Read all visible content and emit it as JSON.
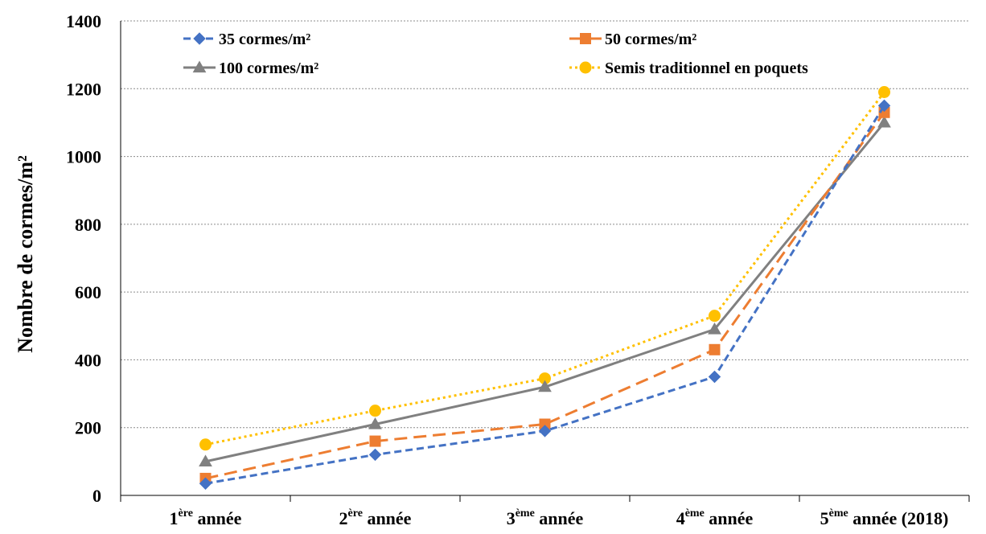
{
  "chart_data": {
    "type": "line",
    "ylabel": "Nombre de cormes/m²",
    "xlabel": "",
    "ylim": [
      0,
      1400
    ],
    "yticks": [
      0,
      200,
      400,
      600,
      800,
      1000,
      1200,
      1400
    ],
    "grid": true,
    "legend_position": "top",
    "categories": [
      {
        "pre": "1",
        "sup": "ère",
        "post": " année"
      },
      {
        "pre": "2",
        "sup": "ère",
        "post": " année"
      },
      {
        "pre": "3",
        "sup": "ème",
        "post": " année"
      },
      {
        "pre": "4",
        "sup": "ème",
        "post": " année"
      },
      {
        "pre": "5",
        "sup": "ème",
        "post": " année (2018)"
      }
    ],
    "series": [
      {
        "name": "35 cormes/m²",
        "values": [
          35,
          120,
          190,
          350,
          1150
        ],
        "color": "#4472C4",
        "dash": "dashed-short",
        "marker": "diamond"
      },
      {
        "name": "50 cormes/m²",
        "values": [
          50,
          160,
          210,
          430,
          1130
        ],
        "color": "#ED7D31",
        "dash": "dashed-long",
        "marker": "square"
      },
      {
        "name": "100 cormes/m²",
        "values": [
          100,
          210,
          320,
          490,
          1100
        ],
        "color": "#808080",
        "dash": "solid",
        "marker": "triangle"
      },
      {
        "name": "Semis traditionnel en poquets",
        "values": [
          150,
          250,
          345,
          530,
          1190
        ],
        "color": "#FFC000",
        "dash": "dotted",
        "marker": "circle"
      }
    ]
  }
}
